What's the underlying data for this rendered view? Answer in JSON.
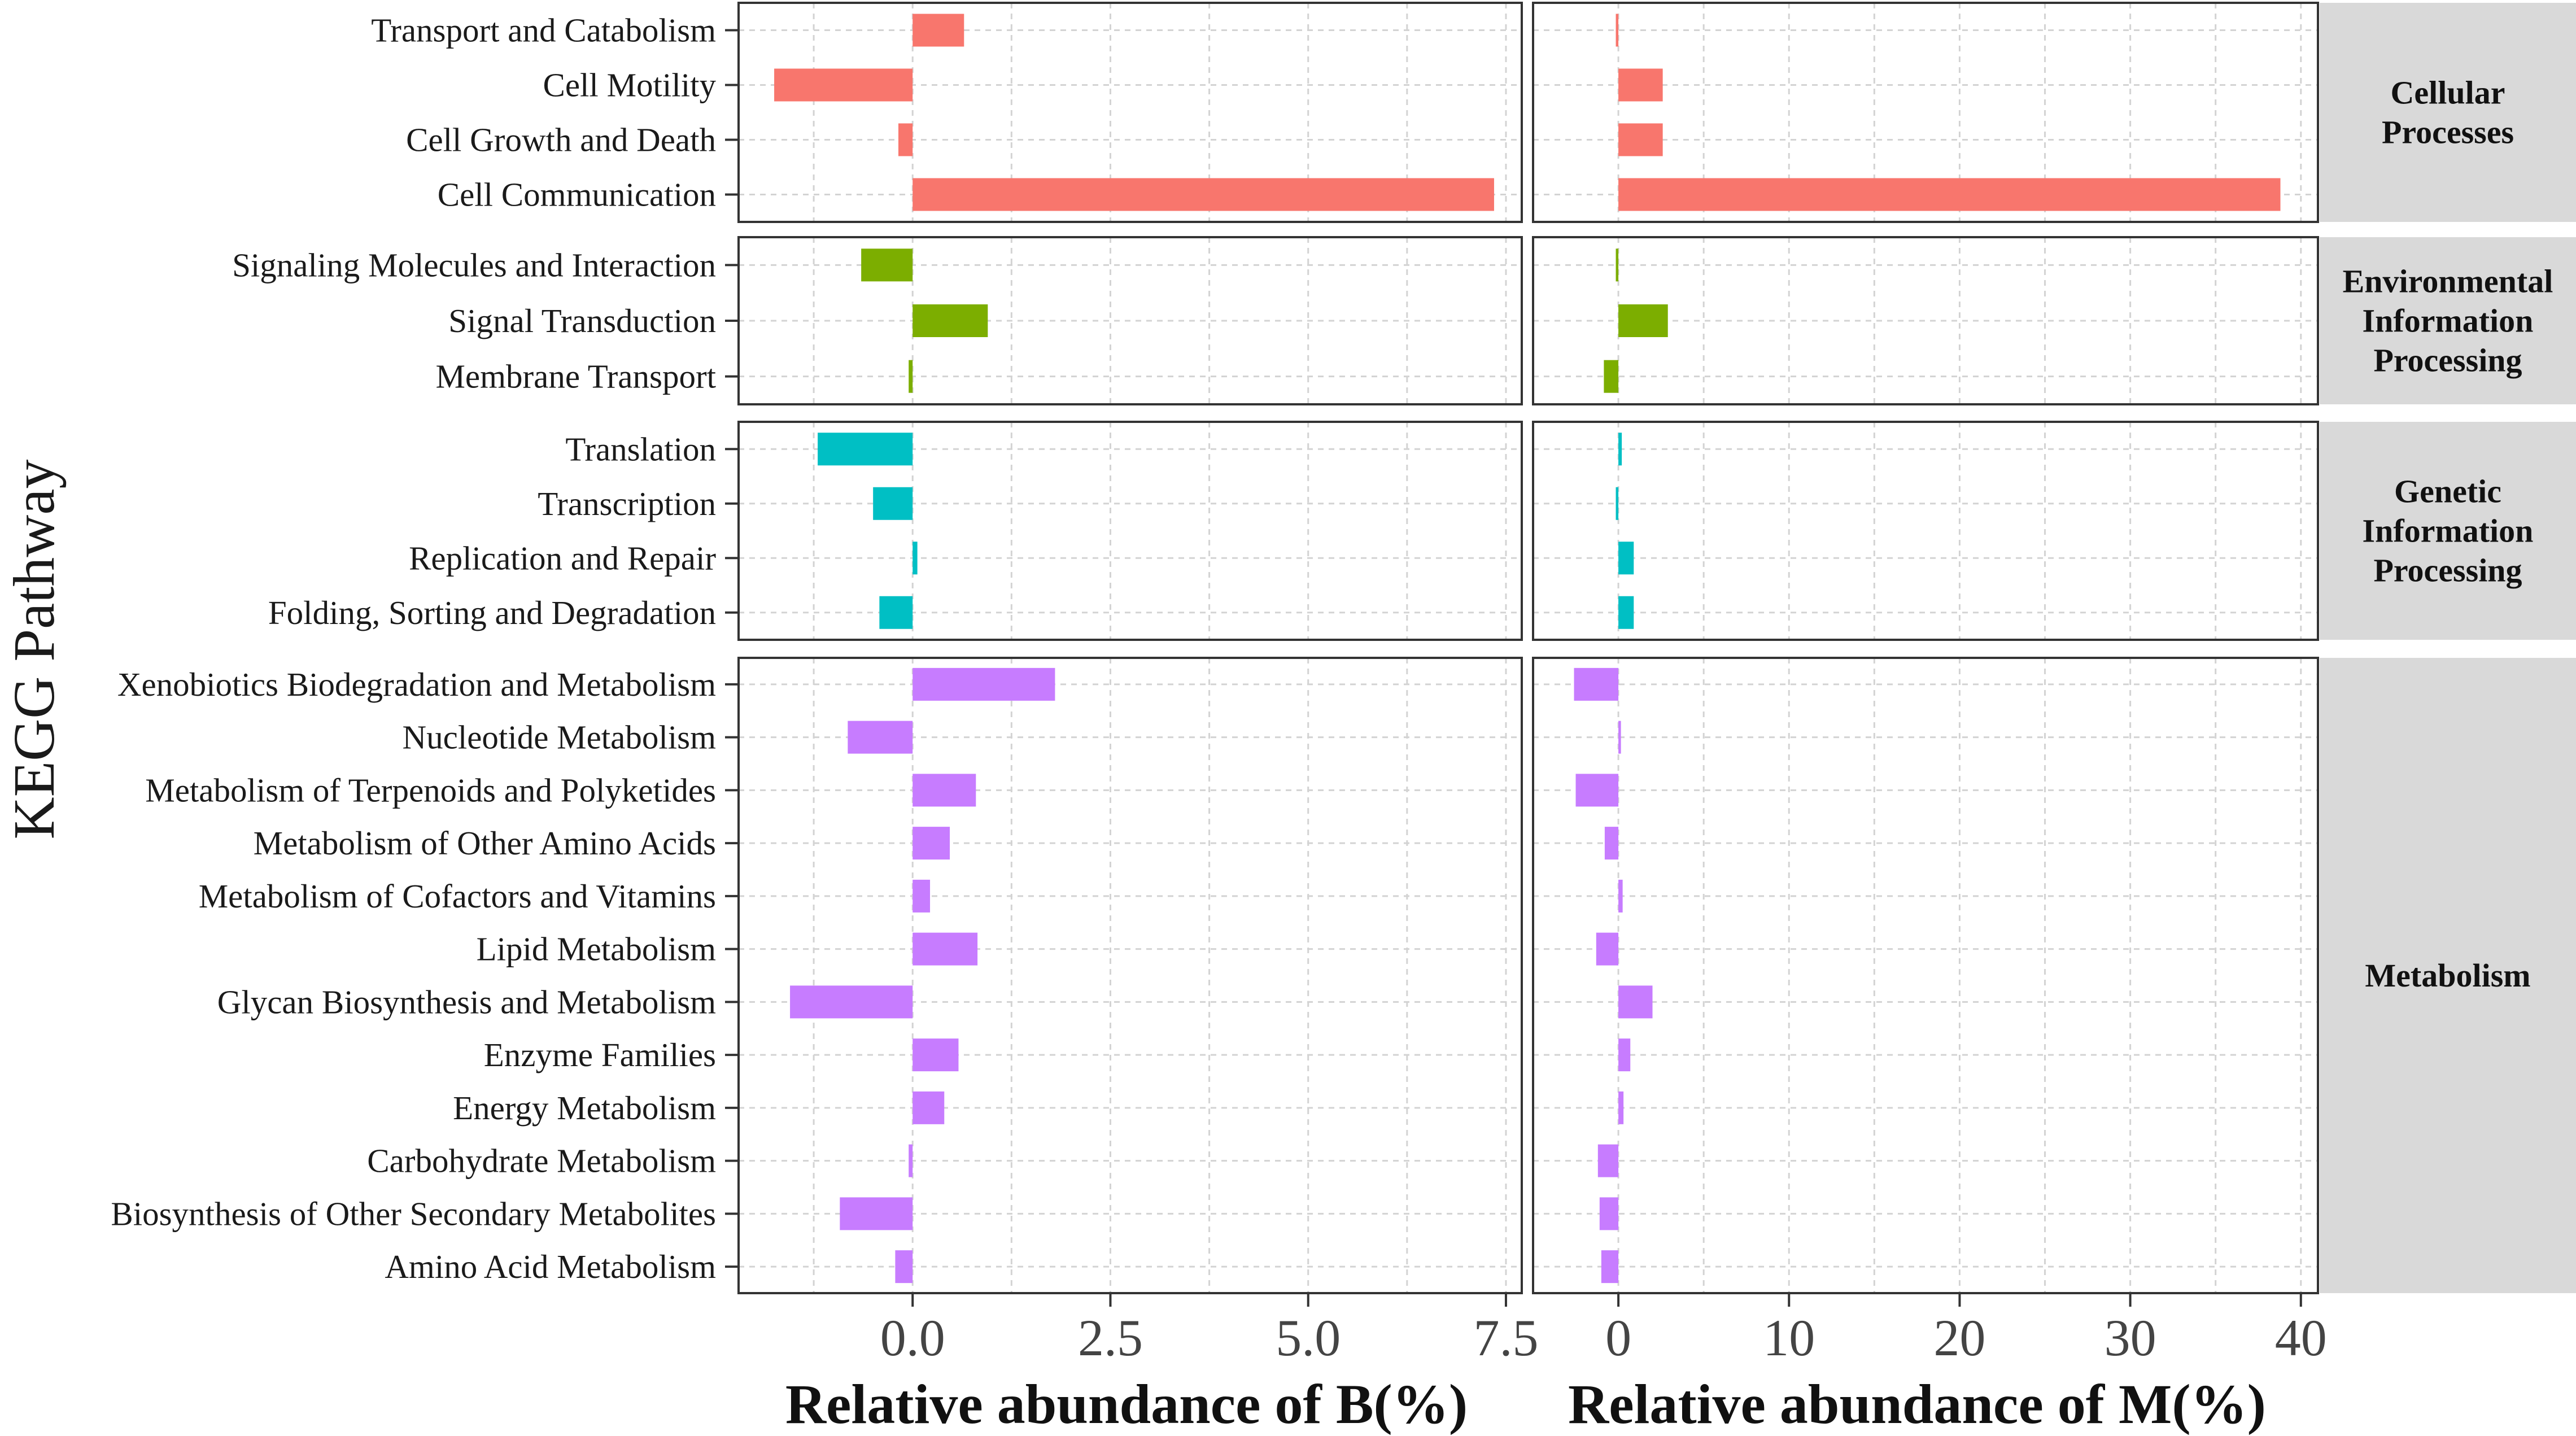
{
  "chart_data": {
    "type": "bar",
    "orientation": "horizontal",
    "ylabel": "KEGG Pathway",
    "colors": {
      "Cellular Processes": "#F8766D",
      "Environmental Information Processing": "#7CAE00",
      "Genetic Information Processing": "#00BFC4",
      "Metabolism": "#C77CFF",
      "strip_bg": "#D9D9D9",
      "grid": "#D3D3D3"
    },
    "panels": [
      {
        "name": "B",
        "xlabel": "Relative abundance of B(%)",
        "xlim": [
          -2.2,
          7.7
        ],
        "ticks": [
          0,
          2.5,
          5,
          7.5
        ],
        "tick_labels": [
          "0.0",
          "2.5",
          "5.0",
          "7.5"
        ],
        "minor_ticks": [
          -1.25,
          1.25,
          3.75,
          6.25
        ]
      },
      {
        "name": "M",
        "xlabel": "Relative abundance of M(%)",
        "xlim": [
          -5,
          41
        ],
        "ticks": [
          0,
          10,
          20,
          30,
          40
        ],
        "tick_labels": [
          "0",
          "10",
          "20",
          "30",
          "40"
        ],
        "minor_ticks": [
          5,
          15,
          25,
          35
        ]
      }
    ],
    "groups": [
      {
        "name": "Cellular Processes",
        "strip_lines": [
          "Cellular",
          "Processes"
        ],
        "pathways": [
          {
            "label": "Transport and Catabolism",
            "B": 0.65,
            "M": -0.15
          },
          {
            "label": "Cell Motility",
            "B": -1.75,
            "M": 2.6
          },
          {
            "label": "Cell Growth and Death",
            "B": -0.18,
            "M": 2.6
          },
          {
            "label": "Cell Communication",
            "B": 7.35,
            "M": 38.8
          }
        ]
      },
      {
        "name": "Environmental Information Processing",
        "strip_lines": [
          "Environmental",
          "Information",
          "Processing"
        ],
        "pathways": [
          {
            "label": "Signaling Molecules and Interaction",
            "B": -0.65,
            "M": -0.15
          },
          {
            "label": "Signal Transduction",
            "B": 0.95,
            "M": 2.9
          },
          {
            "label": "Membrane Transport",
            "B": -0.05,
            "M": -0.85
          }
        ]
      },
      {
        "name": "Genetic Information Processing",
        "strip_lines": [
          "Genetic",
          "Information",
          "Processing"
        ],
        "pathways": [
          {
            "label": "Translation",
            "B": -1.2,
            "M": 0.2
          },
          {
            "label": "Transcription",
            "B": -0.5,
            "M": -0.15
          },
          {
            "label": "Replication and Repair",
            "B": 0.06,
            "M": 0.9
          },
          {
            "label": "Folding, Sorting and Degradation",
            "B": -0.42,
            "M": 0.9
          }
        ]
      },
      {
        "name": "Metabolism",
        "strip_lines": [
          "Metabolism"
        ],
        "pathways": [
          {
            "label": "Xenobiotics Biodegradation and Metabolism",
            "B": 1.8,
            "M": -2.6
          },
          {
            "label": "Nucleotide Metabolism",
            "B": -0.82,
            "M": 0.15
          },
          {
            "label": "Metabolism of Terpenoids and Polyketides",
            "B": 0.8,
            "M": -2.5
          },
          {
            "label": "Metabolism of Other Amino Acids",
            "B": 0.47,
            "M": -0.8
          },
          {
            "label": "Metabolism of Cofactors and Vitamins",
            "B": 0.22,
            "M": 0.25
          },
          {
            "label": "Lipid Metabolism",
            "B": 0.82,
            "M": -1.3
          },
          {
            "label": "Glycan Biosynthesis and Metabolism",
            "B": -1.55,
            "M": 2.0
          },
          {
            "label": "Enzyme Families",
            "B": 0.58,
            "M": 0.7
          },
          {
            "label": "Energy Metabolism",
            "B": 0.4,
            "M": 0.3
          },
          {
            "label": "Carbohydrate Metabolism",
            "B": -0.05,
            "M": -1.2
          },
          {
            "label": "Biosynthesis of Other Secondary Metabolites",
            "B": -0.92,
            "M": -1.1
          },
          {
            "label": "Amino Acid Metabolism",
            "B": -0.22,
            "M": -1.0
          }
        ]
      }
    ]
  }
}
